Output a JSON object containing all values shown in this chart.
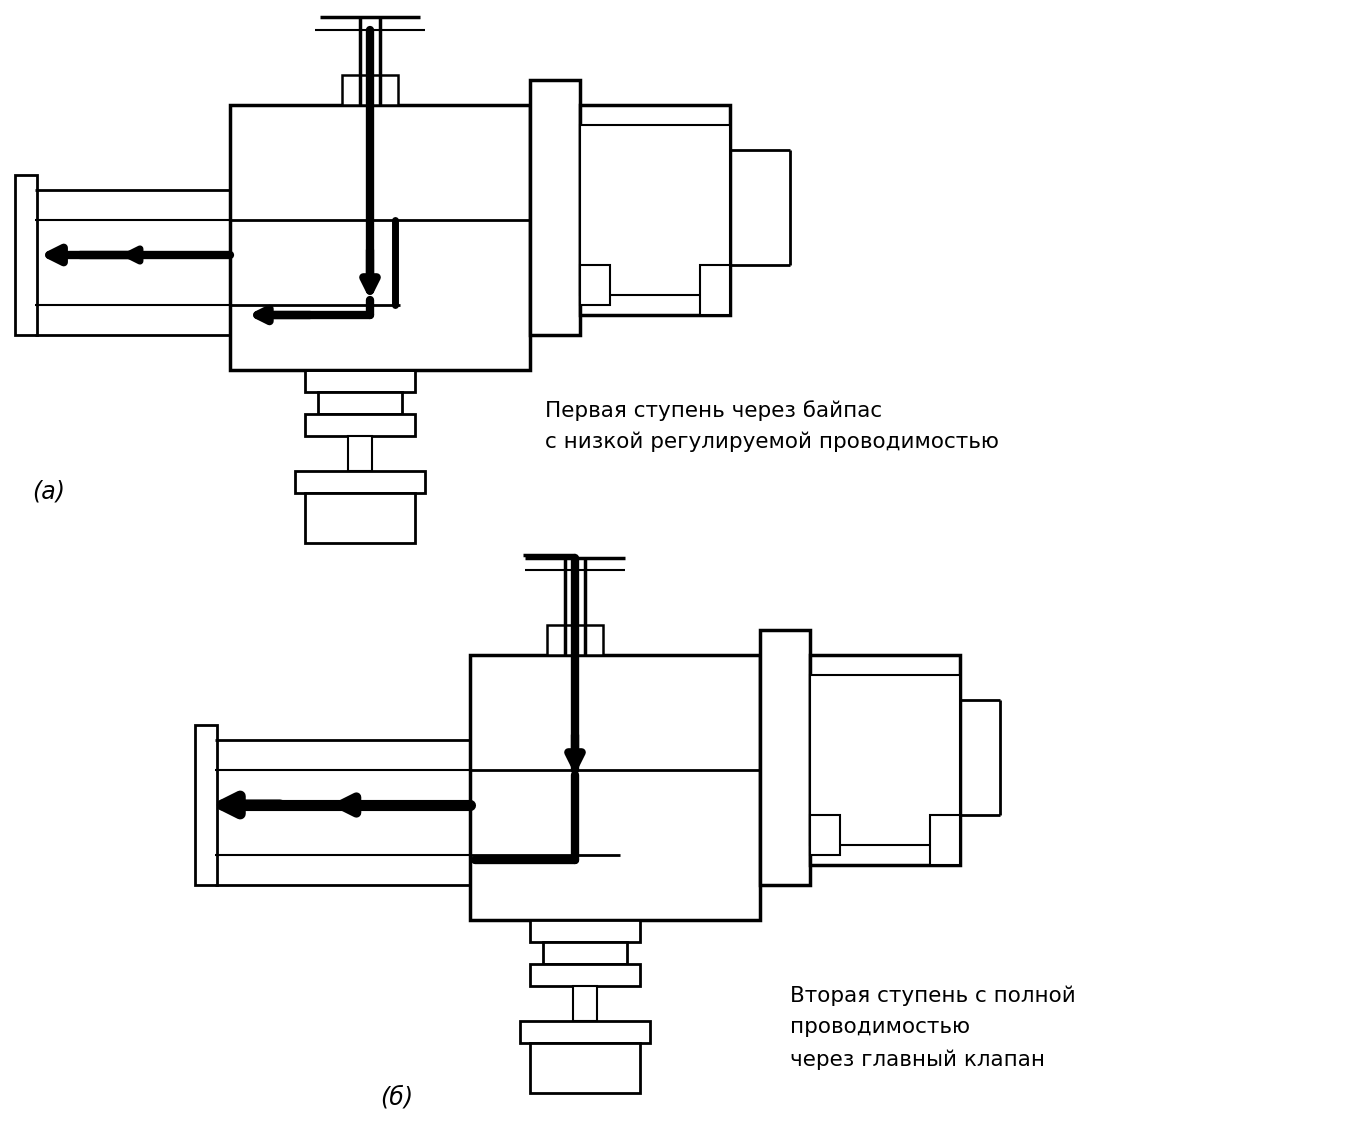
{
  "background_color": "#ffffff",
  "line_color": "#000000",
  "flow_color": "#000000",
  "text_label_a": "(a)",
  "text_label_b": "(б)",
  "text_top_line1": "Первая ступень через байпас",
  "text_top_line2": "с низкой регулируемой проводимостью",
  "text_bot_line1": "Вторая ступень с полной",
  "text_bot_line2": "проводимостью",
  "text_bot_line3": "через главный клапан",
  "figsize": [
    13.47,
    11.29
  ],
  "dpi": 100
}
